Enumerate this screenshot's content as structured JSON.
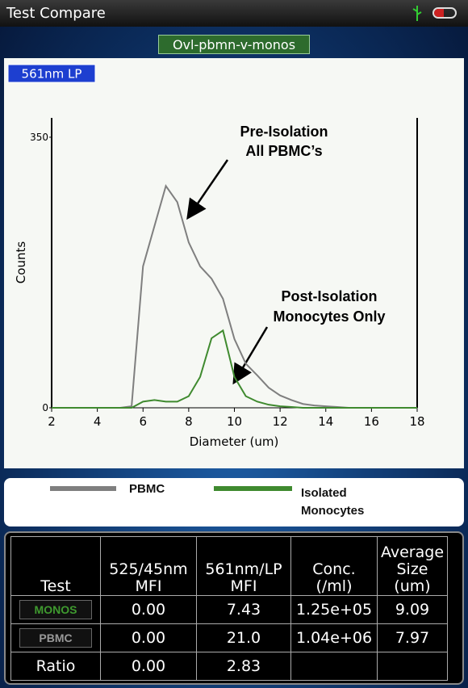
{
  "header": {
    "title": "Test Compare"
  },
  "chart_data": {
    "type": "line",
    "title": "Ovl-pbmn-v-monos",
    "channel": "561nm LP",
    "x_label": "Diameter (um)",
    "y_label": "Counts",
    "x": [
      2,
      2.5,
      3,
      3.5,
      4,
      4.5,
      5,
      5.5,
      6,
      6.5,
      7,
      7.5,
      8,
      8.5,
      9,
      9.5,
      10,
      10.5,
      11,
      11.5,
      12,
      12.5,
      13,
      13.5,
      14,
      14.5,
      15,
      15.5,
      16,
      16.5,
      17,
      17.5,
      18
    ],
    "series": [
      {
        "name": "PBMC",
        "color": "#7f7f7f",
        "values": [
          0,
          0,
          0,
          0,
          0,
          0,
          0,
          2,
          183,
          235,
          287,
          266,
          214,
          183,
          167,
          141,
          89,
          57,
          42,
          26,
          16,
          10,
          5,
          3,
          2,
          1,
          0,
          0,
          0,
          0,
          0,
          0,
          0
        ]
      },
      {
        "name": "Isolated Monocytes",
        "color": "#3f8a2f",
        "values": [
          0,
          0,
          0,
          0,
          0,
          0,
          0,
          0,
          8,
          10,
          8,
          8,
          15,
          40,
          90,
          100,
          40,
          15,
          8,
          4,
          2,
          1,
          0,
          0,
          0,
          0,
          0,
          0,
          0,
          0,
          0,
          0,
          0
        ]
      }
    ],
    "xlim": [
      2,
      18
    ],
    "xticks": [
      2,
      4,
      6,
      8,
      10,
      12,
      14,
      16,
      18
    ],
    "ylim": [
      0,
      375
    ],
    "yticks": [
      0,
      350
    ],
    "annotations": [
      [
        "Pre-Isolation",
        "All PBMC’s"
      ],
      [
        "Post-Isolation",
        "Monocytes Only"
      ]
    ]
  },
  "table": {
    "header": [
      "Test",
      "525/45nm MFI",
      "561nm/LP MFI",
      "Conc. (/ml)",
      "Average Size (um)"
    ],
    "rows": [
      [
        "MONOS",
        "0.00",
        "7.43",
        "1.25e+05",
        "9.09"
      ],
      [
        "PBMC",
        "0.00",
        "21.0",
        "1.04e+06",
        "7.97"
      ],
      [
        "Ratio",
        "0.00",
        "2.83"
      ]
    ]
  }
}
